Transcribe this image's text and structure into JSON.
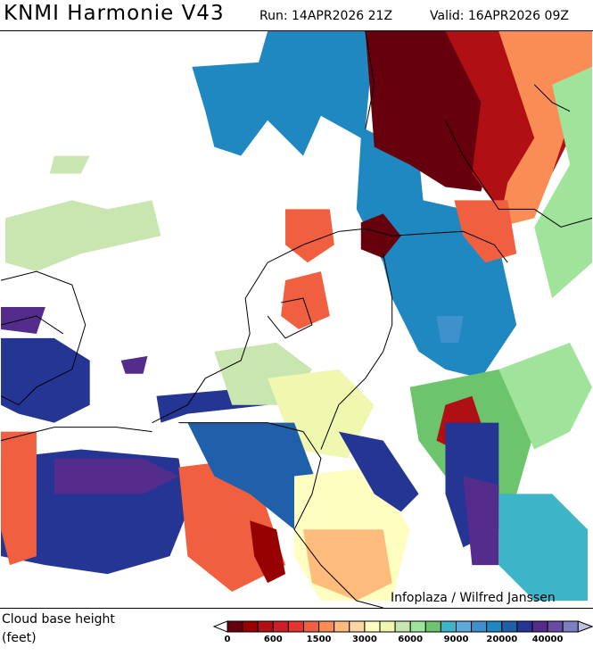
{
  "header": {
    "title": "KNMI Harmonie V43",
    "run": "Run: 14APR2026 21Z",
    "valid": "Valid: 16APR2026 09Z"
  },
  "map": {
    "credit": "Infoplaza / Wilfred Janssen",
    "background": "#ffffff",
    "coastline_color": "#000000"
  },
  "legend": {
    "caption_line1": "Cloud base height",
    "caption_line2": "(feet)",
    "colors": [
      "#67000d",
      "#960000",
      "#b00f14",
      "#cb2027",
      "#e3352f",
      "#f06040",
      "#fa8c55",
      "#fdbc7c",
      "#fdd5a0",
      "#fefec0",
      "#f0f8b0",
      "#c9e6b0",
      "#a0e39a",
      "#6cc56c",
      "#3eb4c8",
      "#5ea9d8",
      "#3f91ce",
      "#1f88c0",
      "#2060aa",
      "#243594",
      "#542c8c",
      "#6a4ba3",
      "#7e7fc0"
    ],
    "under_color": "#ffffff",
    "over_color": "#c0c0e0",
    "tick_labels": [
      "0",
      "600",
      "1500",
      "3000",
      "6000",
      "9000",
      "20000",
      "40000"
    ]
  }
}
